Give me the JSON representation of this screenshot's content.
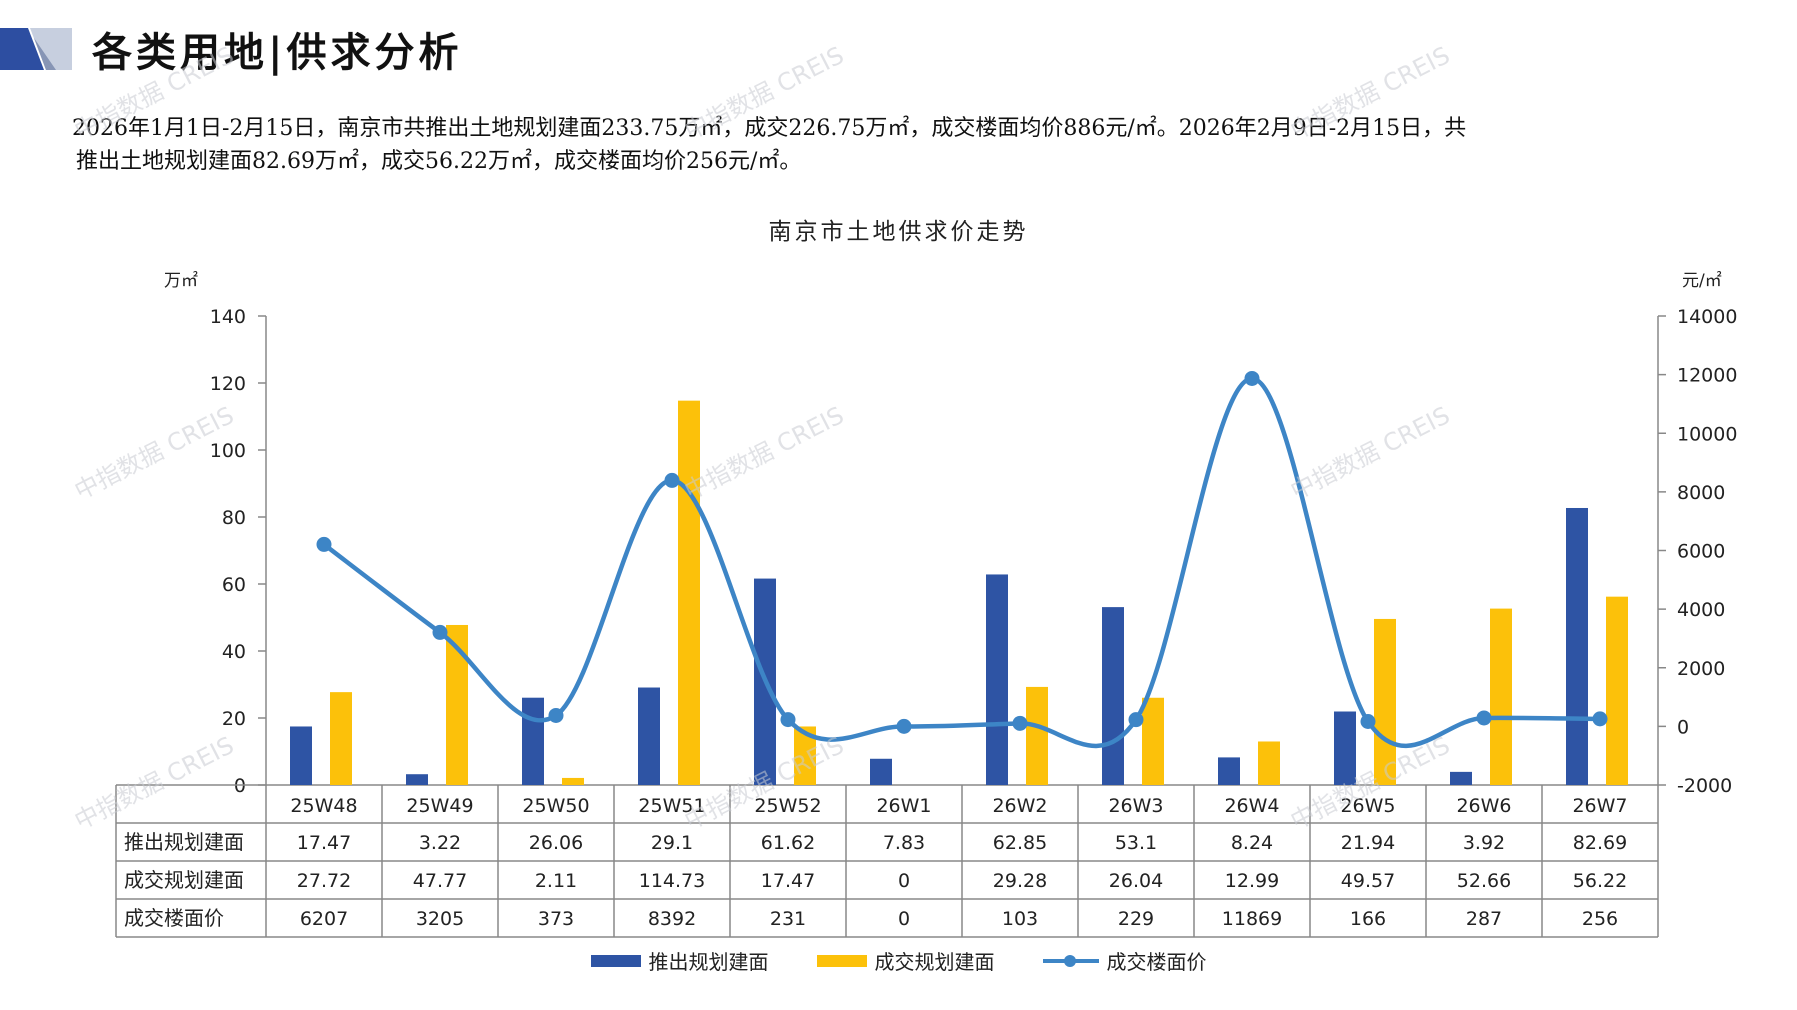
{
  "page": {
    "title": "各类用地|供求分析",
    "summary_lines": [
      "2026年1月1日-2月15日，南京市共推出土地规划建面233.75万㎡，成交226.75万㎡，成交楼面均价886元/㎡。2026年2月9日-2月15日，共",
      "推出土地规划建面82.69万㎡，成交56.22万㎡，成交楼面均价256元/㎡。"
    ],
    "watermark": "中指数据 CREIS"
  },
  "colors": {
    "supply": "#2e54a4",
    "transaction": "#fcc10a",
    "price": "#3d85c6",
    "axis": "#888888",
    "deco_dark": "#2d4ea1",
    "deco_light": "#c7cfdf"
  },
  "chart_data": {
    "type": "bar",
    "title": "南京市土地供求价走势",
    "ylabel_left": "万㎡",
    "ylabel_right": "元/㎡",
    "ylim_left": [
      0,
      140
    ],
    "yticks_left": [
      0,
      20,
      40,
      60,
      80,
      100,
      120,
      140
    ],
    "ylim_right": [
      -2000,
      14000
    ],
    "yticks_right": [
      -2000,
      0,
      2000,
      4000,
      6000,
      8000,
      10000,
      12000,
      14000
    ],
    "categories": [
      "25W48",
      "25W49",
      "25W50",
      "25W51",
      "25W52",
      "26W1",
      "26W2",
      "26W3",
      "26W4",
      "26W5",
      "26W6",
      "26W7"
    ],
    "series": [
      {
        "name": "推出规划建面",
        "type": "bar",
        "axis": "left",
        "values": [
          17.47,
          3.22,
          26.06,
          29.1,
          61.62,
          7.83,
          62.85,
          53.1,
          8.24,
          21.94,
          3.92,
          82.69
        ],
        "labels": [
          "17.47",
          "3.22",
          "26.06",
          "29.1",
          "61.62",
          "7.83",
          "62.85",
          "53.1",
          "8.24",
          "21.94",
          "3.92",
          "82.69"
        ]
      },
      {
        "name": "成交规划建面",
        "type": "bar",
        "axis": "left",
        "values": [
          27.72,
          47.77,
          2.11,
          114.73,
          17.47,
          0,
          29.28,
          26.04,
          12.99,
          49.57,
          52.66,
          56.22
        ],
        "labels": [
          "27.72",
          "47.77",
          "2.11",
          "114.73",
          "17.47",
          "0",
          "29.28",
          "26.04",
          "12.99",
          "49.57",
          "52.66",
          "56.22"
        ]
      },
      {
        "name": "成交楼面价",
        "type": "line",
        "axis": "right",
        "values": [
          6207,
          3205,
          373,
          8392,
          231,
          0,
          103,
          229,
          11869,
          166,
          287,
          256
        ],
        "labels": [
          "6207",
          "3205",
          "373",
          "8392",
          "231",
          "0",
          "103",
          "229",
          "11869",
          "166",
          "287",
          "256"
        ]
      }
    ],
    "legend_position": "bottom",
    "data_table": true,
    "grid": false
  }
}
